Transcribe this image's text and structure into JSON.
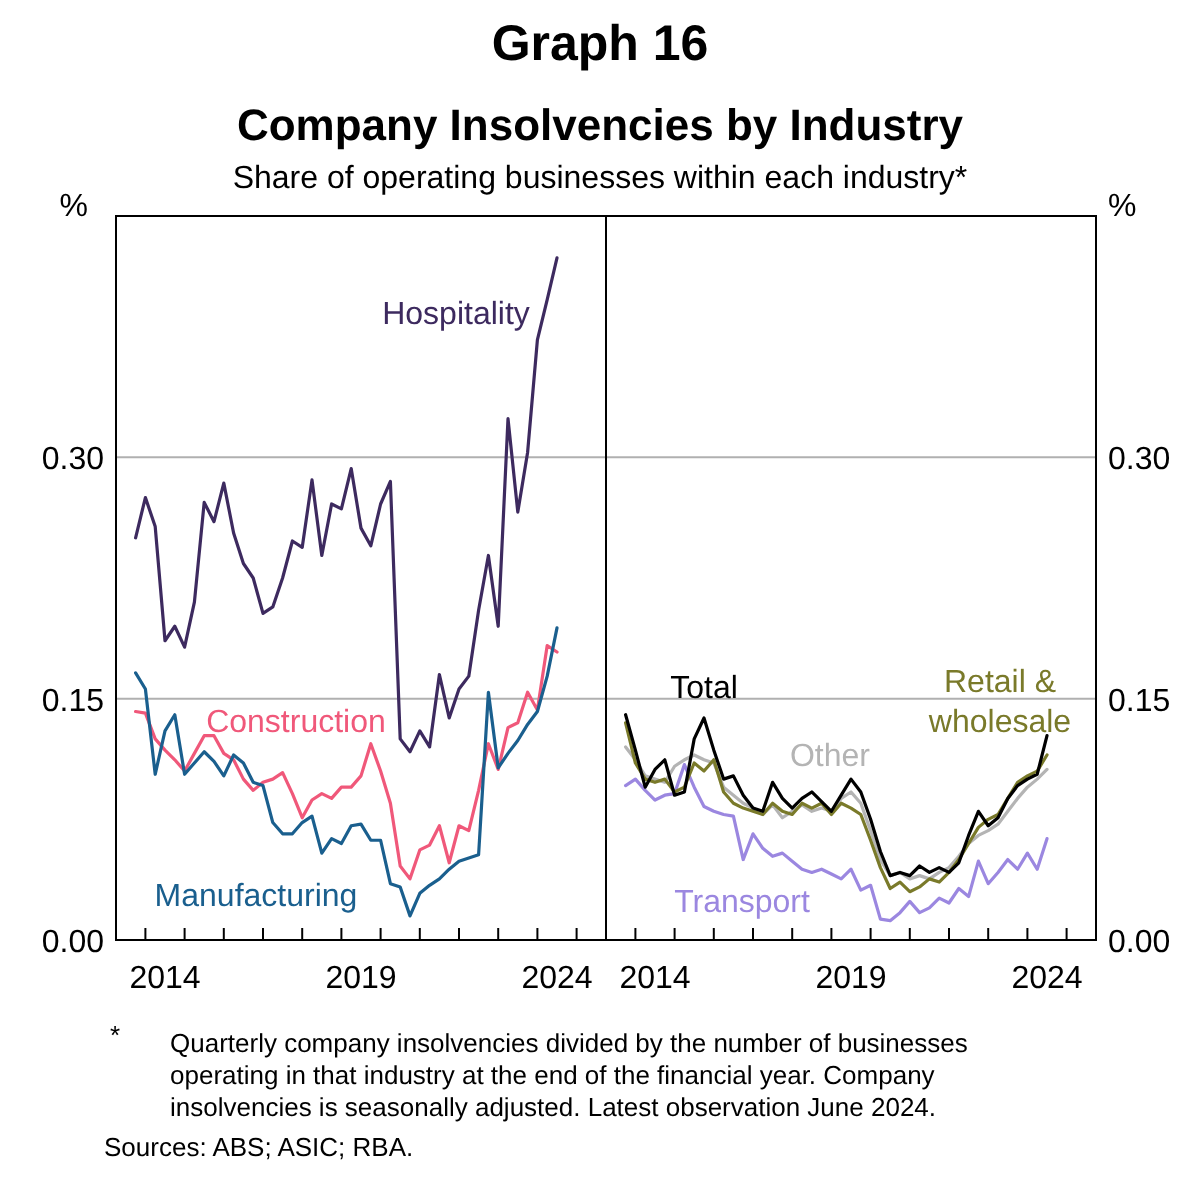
{
  "chart_data": [
    {
      "type": "line",
      "title": "Graph 16",
      "subtitle": "Company Insolvencies by Industry",
      "ylabel": "%",
      "grid": "y",
      "line_style": "solid",
      "marker": "none",
      "annotations": [
        "Share of operating businesses within each industry*",
        "* Quarterly company insolvencies divided by the number of businesses operating in that industry at the end of the financial year. Company insolvencies is seasonally adjusted. Latest observation June 2024.",
        "Sources: ABS; ASIC; RBA."
      ],
      "x": [
        2013.75,
        2014,
        2014.25,
        2014.5,
        2014.75,
        2015,
        2015.25,
        2015.5,
        2015.75,
        2016,
        2016.25,
        2016.5,
        2016.75,
        2017,
        2017.25,
        2017.5,
        2017.75,
        2018,
        2018.25,
        2018.5,
        2018.75,
        2019,
        2019.25,
        2019.5,
        2019.75,
        2020,
        2020.25,
        2020.5,
        2020.75,
        2021,
        2021.25,
        2021.5,
        2021.75,
        2022,
        2022.25,
        2022.5,
        2022.75,
        2023,
        2023.25,
        2023.5,
        2023.75,
        2024,
        2024.25,
        2024.5
      ],
      "xlim": [
        2013.25,
        2025.75
      ],
      "xticks": [
        {
          "value": 2014,
          "label": null
        },
        {
          "value": 2015,
          "label": null
        },
        {
          "value": 2016,
          "label": null
        },
        {
          "value": 2017,
          "label": null
        },
        {
          "value": 2018,
          "label": null
        },
        {
          "value": 2019,
          "label": null
        },
        {
          "value": 2020,
          "label": null
        },
        {
          "value": 2021,
          "label": null
        },
        {
          "value": 2022,
          "label": null
        },
        {
          "value": 2023,
          "label": null
        },
        {
          "value": 2024,
          "label": null
        },
        {
          "value": 2025,
          "label": null
        },
        {
          "value": 2014.5,
          "label": "2014"
        },
        {
          "value": 2019.5,
          "label": "2019"
        },
        {
          "value": 2024.5,
          "label": "2024"
        }
      ],
      "ylim": [
        0,
        0.45
      ],
      "yticks": [
        {
          "value": 0,
          "label": "0.00"
        },
        {
          "value": 0.15,
          "label": "0.15"
        },
        {
          "value": 0.3,
          "label": "0.30"
        }
      ],
      "series": [
        {
          "name": "Hospitality",
          "color": "#3d2a5f",
          "values": [
            0.25,
            0.275,
            0.257,
            0.186,
            0.195,
            0.182,
            0.21,
            0.272,
            0.26,
            0.284,
            0.253,
            0.234,
            0.225,
            0.203,
            0.207,
            0.225,
            0.248,
            0.244,
            0.286,
            0.239,
            0.271,
            0.268,
            0.293,
            0.256,
            0.245,
            0.271,
            0.285,
            0.125,
            0.117,
            0.13,
            0.12,
            0.165,
            0.138,
            0.156,
            0.164,
            0.205,
            0.239,
            0.195,
            0.324,
            0.266,
            0.303,
            0.373,
            0.398,
            0.424
          ]
        },
        {
          "name": "Construction",
          "color": "#f0587a",
          "values": [
            0.142,
            0.141,
            0.125,
            0.118,
            0.112,
            0.105,
            0.116,
            0.127,
            0.127,
            0.116,
            0.112,
            0.1,
            0.093,
            0.098,
            0.1,
            0.104,
            0.091,
            0.076,
            0.087,
            0.091,
            0.088,
            0.095,
            0.095,
            0.102,
            0.122,
            0.105,
            0.085,
            0.046,
            0.038,
            0.056,
            0.059,
            0.071,
            0.048,
            0.071,
            0.068,
            0.093,
            0.122,
            0.106,
            0.132,
            0.135,
            0.154,
            0.143,
            0.183,
            0.179
          ]
        },
        {
          "name": "Manufacturing",
          "color": "#1a5f8e",
          "values": [
            0.166,
            0.156,
            0.103,
            0.13,
            0.14,
            0.103,
            0.11,
            0.117,
            0.111,
            0.102,
            0.115,
            0.11,
            0.098,
            0.096,
            0.073,
            0.066,
            0.066,
            0.073,
            0.077,
            0.054,
            0.063,
            0.06,
            0.071,
            0.072,
            0.062,
            0.062,
            0.035,
            0.033,
            0.015,
            0.029,
            0.034,
            0.038,
            0.044,
            0.049,
            0.051,
            0.053,
            0.154,
            0.107,
            0.116,
            0.124,
            0.134,
            0.142,
            0.164,
            0.194
          ]
        }
      ]
    },
    {
      "type": "line",
      "y2label": "%",
      "grid": "y",
      "line_style": "solid",
      "marker": "none",
      "x": [
        2013.75,
        2014,
        2014.25,
        2014.5,
        2014.75,
        2015,
        2015.25,
        2015.5,
        2015.75,
        2016,
        2016.25,
        2016.5,
        2016.75,
        2017,
        2017.25,
        2017.5,
        2017.75,
        2018,
        2018.25,
        2018.5,
        2018.75,
        2019,
        2019.25,
        2019.5,
        2019.75,
        2020,
        2020.25,
        2020.5,
        2020.75,
        2021,
        2021.25,
        2021.5,
        2021.75,
        2022,
        2022.25,
        2022.5,
        2022.75,
        2023,
        2023.25,
        2023.5,
        2023.75,
        2024,
        2024.25,
        2024.5
      ],
      "xlim": [
        2013.25,
        2025.75
      ],
      "xticks": [
        {
          "value": 2014,
          "label": null
        },
        {
          "value": 2015,
          "label": null
        },
        {
          "value": 2016,
          "label": null
        },
        {
          "value": 2017,
          "label": null
        },
        {
          "value": 2018,
          "label": null
        },
        {
          "value": 2019,
          "label": null
        },
        {
          "value": 2020,
          "label": null
        },
        {
          "value": 2021,
          "label": null
        },
        {
          "value": 2022,
          "label": null
        },
        {
          "value": 2023,
          "label": null
        },
        {
          "value": 2024,
          "label": null
        },
        {
          "value": 2025,
          "label": null
        },
        {
          "value": 2014.5,
          "label": "2014"
        },
        {
          "value": 2019.5,
          "label": "2019"
        },
        {
          "value": 2024.5,
          "label": "2024"
        }
      ],
      "y2lim": [
        0,
        0.45
      ],
      "y2ticks": [
        {
          "value": 0,
          "label": "0.00"
        },
        {
          "value": 0.15,
          "label": "0.15"
        },
        {
          "value": 0.3,
          "label": "0.30"
        }
      ],
      "series": [
        {
          "name": "Transport",
          "color": "#9b87e0",
          "axis": "y2",
          "values": [
            0.096,
            0.1,
            0.093,
            0.087,
            0.09,
            0.091,
            0.109,
            0.095,
            0.083,
            0.08,
            0.078,
            0.077,
            0.05,
            0.066,
            0.057,
            0.052,
            0.054,
            0.049,
            0.044,
            0.042,
            0.044,
            0.041,
            0.038,
            0.044,
            0.031,
            0.034,
            0.013,
            0.012,
            0.017,
            0.024,
            0.017,
            0.02,
            0.026,
            0.023,
            0.032,
            0.027,
            0.049,
            0.035,
            0.042,
            0.05,
            0.044,
            0.054,
            0.044,
            0.063
          ]
        },
        {
          "name": "Other",
          "color": "#b4b4b4",
          "axis": "y2",
          "values": [
            0.12,
            0.112,
            0.102,
            0.1,
            0.098,
            0.108,
            0.112,
            0.115,
            0.112,
            0.11,
            0.095,
            0.09,
            0.085,
            0.082,
            0.078,
            0.084,
            0.076,
            0.08,
            0.084,
            0.08,
            0.082,
            0.08,
            0.088,
            0.092,
            0.085,
            0.068,
            0.05,
            0.04,
            0.042,
            0.038,
            0.04,
            0.038,
            0.042,
            0.045,
            0.052,
            0.06,
            0.065,
            0.068,
            0.072,
            0.08,
            0.088,
            0.095,
            0.1,
            0.106
          ]
        },
        {
          "name": "Retail & wholesale",
          "color": "#7a7a2a",
          "axis": "y2",
          "values": [
            0.135,
            0.11,
            0.1,
            0.098,
            0.1,
            0.092,
            0.095,
            0.11,
            0.105,
            0.112,
            0.092,
            0.085,
            0.082,
            0.08,
            0.078,
            0.085,
            0.08,
            0.078,
            0.085,
            0.082,
            0.085,
            0.078,
            0.085,
            0.082,
            0.078,
            0.062,
            0.045,
            0.032,
            0.036,
            0.03,
            0.033,
            0.038,
            0.036,
            0.042,
            0.05,
            0.06,
            0.07,
            0.075,
            0.078,
            0.088,
            0.098,
            0.102,
            0.105,
            0.115
          ]
        },
        {
          "name": "Total",
          "color": "#000000",
          "axis": "y2",
          "values": [
            0.14,
            0.118,
            0.095,
            0.106,
            0.112,
            0.09,
            0.092,
            0.125,
            0.138,
            0.118,
            0.1,
            0.102,
            0.09,
            0.082,
            0.08,
            0.098,
            0.088,
            0.082,
            0.088,
            0.092,
            0.086,
            0.08,
            0.09,
            0.1,
            0.092,
            0.075,
            0.055,
            0.04,
            0.042,
            0.04,
            0.046,
            0.042,
            0.045,
            0.042,
            0.048,
            0.065,
            0.08,
            0.071,
            0.076,
            0.088,
            0.096,
            0.1,
            0.103,
            0.127
          ]
        }
      ]
    }
  ]
}
